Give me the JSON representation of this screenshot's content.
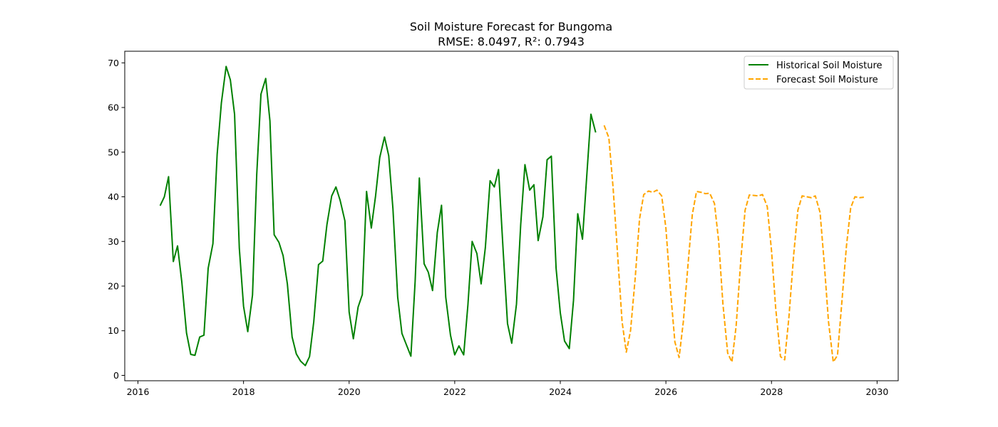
{
  "chart_data": {
    "type": "line",
    "title": "Soil Moisture Forecast for Bungoma",
    "subtitle": "RMSE: 8.0497, R²: 0.7943",
    "xlabel": "",
    "ylabel": "",
    "xlim": [
      2015.75,
      2030.4
    ],
    "ylim": [
      -1.2,
      72.6
    ],
    "x_ticks": [
      2016,
      2018,
      2020,
      2022,
      2024,
      2026,
      2028,
      2030
    ],
    "y_ticks": [
      0,
      10,
      20,
      30,
      40,
      50,
      60,
      70
    ],
    "grid": false,
    "legend_position": "top-right",
    "series": [
      {
        "name": "Historical Soil Moisture",
        "color": "#008000",
        "style": "solid",
        "points": [
          [
            2016.42,
            38.0
          ],
          [
            2016.5,
            40.0
          ],
          [
            2016.58,
            44.5
          ],
          [
            2016.67,
            25.5
          ],
          [
            2016.75,
            29.0
          ],
          [
            2016.83,
            21.0
          ],
          [
            2016.92,
            9.5
          ],
          [
            2017.0,
            4.7
          ],
          [
            2017.08,
            4.5
          ],
          [
            2017.17,
            8.6
          ],
          [
            2017.25,
            9.0
          ],
          [
            2017.33,
            24.0
          ],
          [
            2017.42,
            29.5
          ],
          [
            2017.5,
            49.5
          ],
          [
            2017.58,
            61.0
          ],
          [
            2017.67,
            69.2
          ],
          [
            2017.75,
            66.2
          ],
          [
            2017.83,
            58.5
          ],
          [
            2017.92,
            28.5
          ],
          [
            2018.0,
            15.5
          ],
          [
            2018.08,
            9.8
          ],
          [
            2018.17,
            18.0
          ],
          [
            2018.25,
            45.0
          ],
          [
            2018.33,
            63.0
          ],
          [
            2018.42,
            66.5
          ],
          [
            2018.5,
            57.0
          ],
          [
            2018.58,
            31.5
          ],
          [
            2018.67,
            29.8
          ],
          [
            2018.75,
            26.8
          ],
          [
            2018.83,
            20.5
          ],
          [
            2018.92,
            8.6
          ],
          [
            2019.0,
            4.8
          ],
          [
            2019.08,
            3.2
          ],
          [
            2019.17,
            2.2
          ],
          [
            2019.25,
            4.2
          ],
          [
            2019.33,
            12.0
          ],
          [
            2019.42,
            24.8
          ],
          [
            2019.5,
            25.6
          ],
          [
            2019.58,
            33.8
          ],
          [
            2019.67,
            40.2
          ],
          [
            2019.75,
            42.2
          ],
          [
            2019.83,
            39.2
          ],
          [
            2019.92,
            34.6
          ],
          [
            2020.0,
            14.2
          ],
          [
            2020.08,
            8.2
          ],
          [
            2020.17,
            15.3
          ],
          [
            2020.25,
            18.1
          ],
          [
            2020.33,
            41.2
          ],
          [
            2020.42,
            33.0
          ],
          [
            2020.5,
            40.1
          ],
          [
            2020.58,
            48.8
          ],
          [
            2020.67,
            53.4
          ],
          [
            2020.75,
            49.2
          ],
          [
            2020.83,
            37.3
          ],
          [
            2020.92,
            17.5
          ],
          [
            2021.0,
            9.4
          ],
          [
            2021.08,
            7.0
          ],
          [
            2021.17,
            4.3
          ],
          [
            2021.25,
            21.0
          ],
          [
            2021.33,
            44.2
          ],
          [
            2021.42,
            25.0
          ],
          [
            2021.5,
            23.1
          ],
          [
            2021.58,
            19.0
          ],
          [
            2021.67,
            32.0
          ],
          [
            2021.75,
            38.1
          ],
          [
            2021.83,
            17.5
          ],
          [
            2021.92,
            9.0
          ],
          [
            2022.0,
            4.6
          ],
          [
            2022.08,
            6.6
          ],
          [
            2022.17,
            4.6
          ],
          [
            2022.25,
            15.8
          ],
          [
            2022.33,
            30.0
          ],
          [
            2022.42,
            27.3
          ],
          [
            2022.5,
            20.5
          ],
          [
            2022.58,
            28.6
          ],
          [
            2022.67,
            43.6
          ],
          [
            2022.75,
            42.2
          ],
          [
            2022.83,
            46.1
          ],
          [
            2022.92,
            27.4
          ],
          [
            2023.0,
            11.6
          ],
          [
            2023.08,
            7.2
          ],
          [
            2023.17,
            16.0
          ],
          [
            2023.25,
            33.8
          ],
          [
            2023.33,
            47.2
          ],
          [
            2023.42,
            41.5
          ],
          [
            2023.5,
            42.7
          ],
          [
            2023.58,
            30.2
          ],
          [
            2023.67,
            35.5
          ],
          [
            2023.75,
            48.3
          ],
          [
            2023.83,
            49.1
          ],
          [
            2023.92,
            24.0
          ],
          [
            2024.0,
            14.0
          ],
          [
            2024.08,
            7.7
          ],
          [
            2024.17,
            6.0
          ],
          [
            2024.25,
            16.8
          ],
          [
            2024.33,
            36.2
          ],
          [
            2024.42,
            30.5
          ],
          [
            2024.5,
            44.5
          ],
          [
            2024.58,
            58.5
          ],
          [
            2024.67,
            54.4
          ]
        ]
      },
      {
        "name": "Forecast Soil Moisture",
        "color": "#FFA500",
        "style": "dashed",
        "points": [
          [
            2024.83,
            56.0
          ],
          [
            2024.92,
            53.2
          ],
          [
            2025.0,
            42.0
          ],
          [
            2025.08,
            28.0
          ],
          [
            2025.17,
            12.0
          ],
          [
            2025.25,
            5.2
          ],
          [
            2025.33,
            10.0
          ],
          [
            2025.42,
            22.0
          ],
          [
            2025.5,
            35.0
          ],
          [
            2025.58,
            40.5
          ],
          [
            2025.67,
            41.3
          ],
          [
            2025.75,
            41.0
          ],
          [
            2025.83,
            41.5
          ],
          [
            2025.92,
            40.2
          ],
          [
            2026.0,
            33.0
          ],
          [
            2026.08,
            20.0
          ],
          [
            2026.17,
            7.5
          ],
          [
            2026.25,
            4.0
          ],
          [
            2026.33,
            12.0
          ],
          [
            2026.42,
            25.0
          ],
          [
            2026.5,
            36.0
          ],
          [
            2026.58,
            41.2
          ],
          [
            2026.67,
            41.0
          ],
          [
            2026.75,
            40.7
          ],
          [
            2026.83,
            40.8
          ],
          [
            2026.92,
            38.5
          ],
          [
            2027.0,
            30.0
          ],
          [
            2027.08,
            16.0
          ],
          [
            2027.17,
            5.0
          ],
          [
            2027.25,
            3.0
          ],
          [
            2027.33,
            11.0
          ],
          [
            2027.42,
            26.0
          ],
          [
            2027.5,
            37.0
          ],
          [
            2027.58,
            40.4
          ],
          [
            2027.67,
            40.3
          ],
          [
            2027.75,
            40.2
          ],
          [
            2027.83,
            40.5
          ],
          [
            2027.92,
            37.8
          ],
          [
            2028.0,
            28.0
          ],
          [
            2028.08,
            15.0
          ],
          [
            2028.17,
            4.2
          ],
          [
            2028.25,
            3.5
          ],
          [
            2028.33,
            13.0
          ],
          [
            2028.42,
            27.0
          ],
          [
            2028.5,
            37.0
          ],
          [
            2028.58,
            40.2
          ],
          [
            2028.67,
            40.0
          ],
          [
            2028.75,
            39.8
          ],
          [
            2028.83,
            40.2
          ],
          [
            2028.92,
            36.5
          ],
          [
            2029.0,
            25.0
          ],
          [
            2029.08,
            12.0
          ],
          [
            2029.17,
            3.0
          ],
          [
            2029.25,
            4.5
          ],
          [
            2029.33,
            16.0
          ],
          [
            2029.42,
            29.0
          ],
          [
            2029.5,
            37.5
          ],
          [
            2029.58,
            40.0
          ],
          [
            2029.67,
            39.8
          ],
          [
            2029.75,
            39.9
          ]
        ]
      }
    ]
  }
}
